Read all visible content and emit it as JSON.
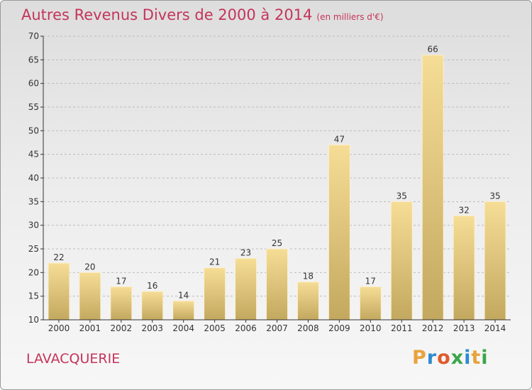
{
  "header": {
    "title": "Autres Revenus Divers de 2000 à 2014",
    "unit": "(en milliers d'€)"
  },
  "footer": {
    "commune": "LAVACQUERIE",
    "brand": "Proxiti"
  },
  "colors": {
    "title": "#c4345a",
    "bar_light": "#f6dd96",
    "bar_dark": "#c3a85f",
    "axis": "#333333",
    "grid": "#bbbbbb"
  },
  "chart_data": {
    "type": "bar",
    "title": "Autres Revenus Divers de 2000 à 2014",
    "xlabel": "",
    "ylabel": "",
    "categories": [
      "2000",
      "2001",
      "2002",
      "2003",
      "2004",
      "2005",
      "2006",
      "2007",
      "2008",
      "2009",
      "2010",
      "2011",
      "2012",
      "2013",
      "2014"
    ],
    "values": [
      22,
      20,
      17,
      16,
      14,
      21,
      23,
      25,
      18,
      47,
      17,
      35,
      66,
      32,
      35
    ],
    "ylim": [
      10,
      70
    ],
    "yticks": [
      10,
      15,
      20,
      25,
      30,
      35,
      40,
      45,
      50,
      55,
      60,
      65,
      70
    ],
    "grid": true,
    "legend": "none"
  }
}
